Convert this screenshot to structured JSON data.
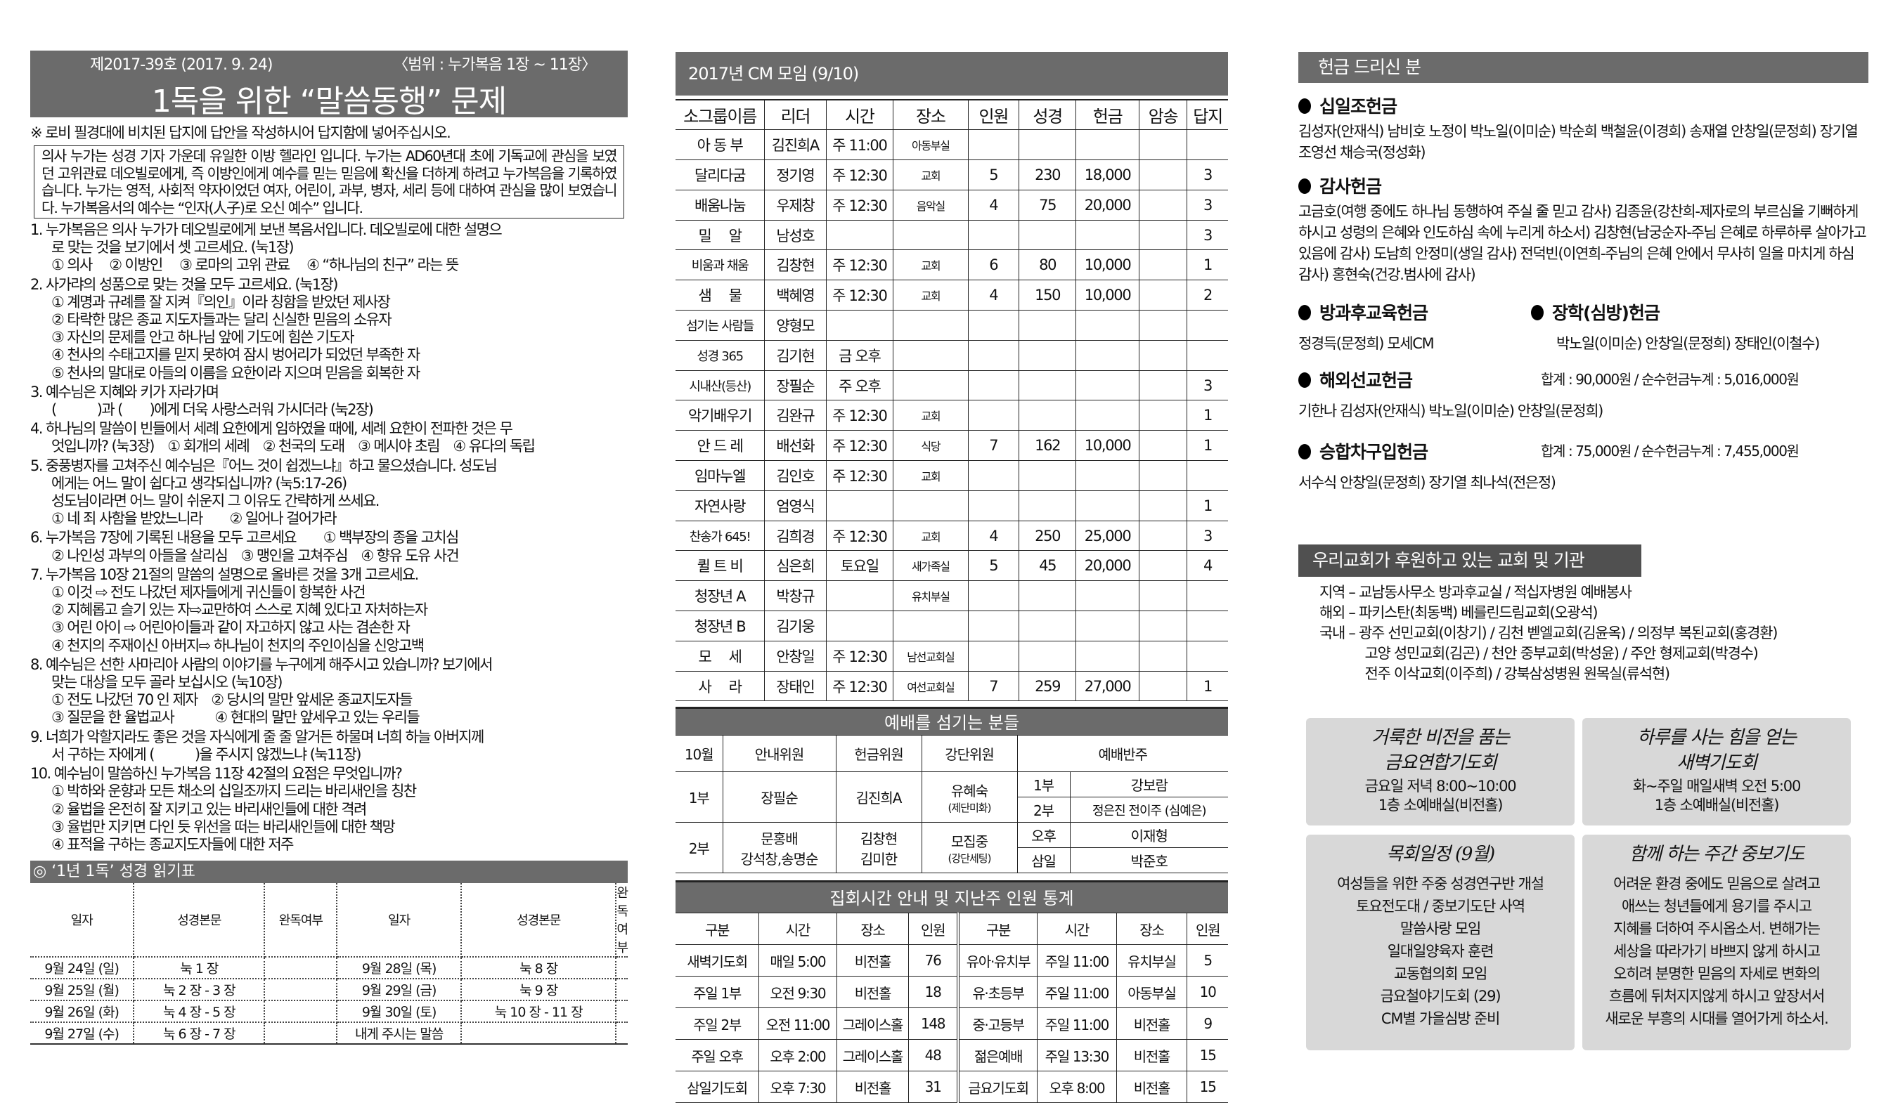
{
  "left": {
    "issue": "제2017-39호 (2017. 9. 24)",
    "range": "〈범위 : 누가복음 1장 ~ 11장〉",
    "title": "1독을 위한 “말씀동행” 문제",
    "instruction": "※ 로비 필경대에 비치된 답지에 답안을 작성하시어 답지함에 넣어주십시오.",
    "intro": "의사 누가는 성경 기자 가운데 유일한 이방 헬라인 입니다. 누가는 AD60년대 초에 기독교에 관심을 보였던 고위관료 데오빌로에게, 즉 이방인에게 예수를 믿는 믿음에 확신을 더하게 하려고 누가복음을 기록하였습니다. 누가는 영적, 사회적 약자이었던 여자, 어린이, 과부, 병자, 세리 등에 대하여 관심을 많이 보였습니다. 누가복음서의 예수는 “인자(人子)로 오신 예수” 입니다.",
    "questions": [
      {
        "lines": [
          "1. 누가복음은 의사 누가가 데오빌로에게 보낸 복음서입니다. 데오빌로에 대한 설명으",
          "로 맞는 것을 보기에서 셋 고르세요. (눅1장)",
          "① 의사　 ② 이방인　 ③ 로마의 고위 관료　 ④ “하나님의 친구” 라는 뜻"
        ]
      },
      {
        "lines": [
          "2. 사가랴의 성품으로 맞는 것을 모두 고르세요. (눅1장)",
          "① 계명과 규례를 잘 지켜『의인』이라 칭함을 받았던 제사장",
          "② 타락한 많은 종교 지도자들과는 달리 신실한 믿음의 소유자",
          "③ 자신의 문제를 안고 하나님 앞에 기도에 힘쓴 기도자",
          "④ 천사의 수태고지를 믿지 못하여 잠시 벙어리가 되었던 부족한 자",
          "⑤ 천사의 말대로 아들의 이름을 요한이라 지으며 믿음을 회복한 자"
        ]
      },
      {
        "lines": [
          "3. 예수님은 지혜와 키가 자라가며",
          "(　　　)과 (　　)에게 더욱 사랑스러워 가시더라 (눅2장)"
        ]
      },
      {
        "lines": [
          "4. 하나님의 말씀이 빈들에서 세례 요한에게 임하였을 때에, 세례 요한이 전파한 것은 무",
          "엇입니까? (눅3장)　① 회개의 세례　② 천국의 도래　③ 메시야 초림　④ 유다의 독립"
        ]
      },
      {
        "lines": [
          "5. 중풍병자를 고쳐주신 예수님은『어느 것이 쉽겠느냐』하고 물으셨습니다. 성도님",
          "에게는 어느 말이 쉽다고 생각되십니까? (눅5:17-26)",
          "성도님이라면 어느 말이 쉬운지 그 이유도 간략하게 쓰세요.",
          "① 네 죄 사함을 받았느니라　　② 일어나 걸어가라"
        ]
      },
      {
        "lines": [
          "6. 누가복음 7장에 기록된 내용을 모두 고르세요　　① 백부장의 종을 고치심",
          "② 나인성 과부의 아들을 살리심　③ 맹인을 고쳐주심　④ 향유 도유 사건"
        ]
      },
      {
        "lines": [
          "7. 누가복음 10장 21절의 말씀의 설명으로 올바른 것을 3개 고르세요.",
          "① 이것 ⇨ 전도 나갔던 제자들에게 귀신들이 항복한 사건",
          "② 지혜롭고 슬기 있는 자⇨교만하여 스스로 지혜 있다고 자처하는자",
          "③ 어린 아이 ⇨ 어린아이들과 같이 자고하지 않고 사는 겸손한 자",
          "④ 천지의 주재이신 아버지⇨ 하나님이 천지의 주인이심을 신앙고백"
        ]
      },
      {
        "lines": [
          "8. 예수님은 선한 사마리아 사람의 이야기를 누구에게 해주시고 있습니까? 보기에서",
          "맞는 대상을 모두 골라 보십시오 (눅10장)",
          " ① 전도 나갔던 70 인 제자　② 당시의 말만 앞세운 종교지도자들",
          " ③ 질문을 한 율법교사　　　④ 현대의 말만 앞세우고 있는 우리들"
        ]
      },
      {
        "lines": [
          "9. 너희가 악할지라도 좋은 것을 자식에게 줄 줄 알거든 하물며 너희 하늘 아버지께",
          "서 구하는 자에게 (　　　)을 주시지 않겠느냐 (눅11장)"
        ]
      },
      {
        "lines": [
          "10. 예수님이 말씀하신 누가복음 11장 42절의 요점은 무엇입니까?",
          "① 박하와 운향과 모든 채소의 십일조까지 드리는 바리새인을 칭찬",
          "② 율법을 온전히 잘 지키고 있는 바리새인들에 대한 격려",
          "③ 율법만 지키면 다인 듯 위선을 떠는 바리새인들에 대한 책망",
          "④ 표적을 구하는 종교지도자들에 대한 저주"
        ]
      }
    ],
    "reading": {
      "title": "◎ ‘1년 1독’ 성경 읽기표",
      "headers": [
        "일자",
        "성경본문",
        "완독여부",
        "일자",
        "성경본문",
        "완독여부"
      ],
      "rows": [
        [
          "9월 24일 (일)",
          "눅 1 장",
          "",
          "9월 28일 (목)",
          "눅 8 장",
          ""
        ],
        [
          "9월 25일 (월)",
          "눅 2 장 - 3 장",
          "",
          "9월 29일 (금)",
          "눅 9 장",
          ""
        ],
        [
          "9월 26일 (화)",
          "눅 4 장 - 5 장",
          "",
          "9월 30일 (토)",
          "눅 10 장 - 11 장",
          ""
        ],
        [
          "9월 27일 (수)",
          "눅 6 장 - 7 장",
          "",
          "내게 주시는 말씀",
          "",
          ""
        ]
      ]
    }
  },
  "cm": {
    "title": "2017년 CM 모임 (9/10)",
    "headers": [
      "소그룹이름",
      "리더",
      "시간",
      "장소",
      "인원",
      "성경",
      "헌금",
      "암송",
      "답지"
    ],
    "rows": [
      [
        "아 동 부",
        "김진희A",
        "주 11:00",
        "아동부실",
        "",
        "",
        "",
        "",
        ""
      ],
      [
        "달리다굼",
        "정기영",
        "주 12:30",
        "교회",
        "5",
        "230",
        "18,000",
        "",
        "3"
      ],
      [
        "배움나눔",
        "우제창",
        "주 12:30",
        "음악실",
        "4",
        "75",
        "20,000",
        "",
        "3"
      ],
      [
        "밀　 알",
        "남성호",
        "",
        "",
        "",
        "",
        "",
        "",
        "3"
      ],
      [
        "비움과 채움",
        "김창현",
        "주 12:30",
        "교회",
        "6",
        "80",
        "10,000",
        "",
        "1"
      ],
      [
        "샘　 물",
        "백혜영",
        "주 12:30",
        "교회",
        "4",
        "150",
        "10,000",
        "",
        "2"
      ],
      [
        "섬기는 사람들",
        "양형모",
        "",
        "",
        "",
        "",
        "",
        "",
        ""
      ],
      [
        "성경 365",
        "김기현",
        "금 오후",
        "",
        "",
        "",
        "",
        "",
        ""
      ],
      [
        "시내산(등산)",
        "장필순",
        "주 오후",
        "",
        "",
        "",
        "",
        "",
        "3"
      ],
      [
        "악기배우기",
        "김완규",
        "주 12:30",
        "교회",
        "",
        "",
        "",
        "",
        "1"
      ],
      [
        "안 드 레",
        "배선화",
        "주 12:30",
        "식당",
        "7",
        "162",
        "10,000",
        "",
        "1"
      ],
      [
        "임마누엘",
        "김인호",
        "주 12:30",
        "교회",
        "",
        "",
        "",
        "",
        ""
      ],
      [
        "자연사랑",
        "엄영식",
        "",
        "",
        "",
        "",
        "",
        "",
        "1"
      ],
      [
        "찬송가 645!",
        "김희경",
        "주 12:30",
        "교회",
        "4",
        "250",
        "25,000",
        "",
        "3"
      ],
      [
        "퀼 트 비",
        "심은희",
        "토요일",
        "새가족실",
        "5",
        "45",
        "20,000",
        "",
        "4"
      ],
      [
        "청장년 A",
        "박창규",
        "",
        "유치부실",
        "",
        "",
        "",
        "",
        ""
      ],
      [
        "청장년 B",
        "김기웅",
        "",
        "",
        "",
        "",
        "",
        "",
        ""
      ],
      [
        "모　 세",
        "안창일",
        "주 12:30",
        "남선교회실",
        "",
        "",
        "",
        "",
        ""
      ],
      [
        "사　 라",
        "장태인",
        "주 12:30",
        "여선교회실",
        "7",
        "259",
        "27,000",
        "",
        "1"
      ]
    ]
  },
  "worship": {
    "title": "예배를 섬기는 분들",
    "headers": [
      "10월",
      "안내위원",
      "헌금위원",
      "강단위원",
      "예배반주"
    ],
    "part1": "1부",
    "part2": "2부",
    "usher1": "장필순",
    "usher2a": "문홍배",
    "usher2b": "강석창,송명순",
    "offering1": "김진희A",
    "offering2a": "김창현",
    "offering2b": "김미한",
    "altar1": "유혜숙",
    "altar1_note": "(제단미화)",
    "altar2": "모집중",
    "altar2_note": "(강단세팅)",
    "accomp": [
      [
        "1부",
        "강보람"
      ],
      [
        "2부",
        "정은진 전이주 (심예은)"
      ],
      [
        "오후",
        "이재형"
      ],
      [
        "삼일",
        "박준호"
      ]
    ]
  },
  "meeting": {
    "title": "집회시간 안내 및 지난주 인원 통계",
    "headers": [
      "구분",
      "시간",
      "장소",
      "인원",
      "구분",
      "시간",
      "장소",
      "인원"
    ],
    "rows": [
      [
        "새벽기도회",
        "매일 5:00",
        "비전홀",
        "76",
        "유아·유치부",
        "주일 11:00",
        "유치부실",
        "5"
      ],
      [
        "주일 1부",
        "오전 9:30",
        "비전홀",
        "18",
        "유·초등부",
        "주일 11:00",
        "아동부실",
        "10"
      ],
      [
        "주일 2부",
        "오전 11:00",
        "그레이스홀",
        "148",
        "중·고등부",
        "주일 11:00",
        "비전홀",
        "9"
      ],
      [
        "주일 오후",
        "오후 2:00",
        "그레이스홀",
        "48",
        "젊은예배",
        "주일 13:30",
        "비전홀",
        "15"
      ],
      [
        "삼일기도회",
        "오후 7:30",
        "비전홀",
        "31",
        "금요기도회",
        "오후 8:00",
        "비전홀",
        "15"
      ]
    ]
  },
  "offering": {
    "title": "헌금 드리신 분",
    "tithe": {
      "title": "십일조헌금",
      "names": "김성자(안재식) 남비호 노정이 박노일(이미순) 박순희 백철윤(이경희) 송재열 안창일(문정희) 장기열 조영선 채승국(정성화)"
    },
    "thanks": {
      "title": "감사헌금",
      "names": "고금호(여행 중에도 하나님 동행하여 주실 줄 믿고 감사) 김종윤(강찬희-제자로의 부르심을 기뻐하게 하시고 성령의 은혜와 인도하심 속에 누리게 하소서) 김창현(남궁순자-주님 은혜로 하루하루 살아가고 있음에 감사) 도남희 안정미(생일 감사) 전덕빈(이연희-주님의 은혜 안에서 무사히 일을 마치게 하심 감사) 홍현숙(건강.범사에 감사)"
    },
    "afterschool": {
      "title": "방과후교육헌금",
      "names": "정경득(문정희) 모세CM"
    },
    "scholarship": {
      "title": "장학(심방)헌금",
      "names": "박노일(이미순) 안창일(문정희) 장태인(이철수)"
    },
    "mission": {
      "title": "해외선교헌금",
      "total": "합계 : 90,000원 / 순수헌금누계 : 5,016,000원",
      "names": "기한나 김성자(안재식) 박노일(이미순) 안창일(문정희)"
    },
    "van": {
      "title": "승합차구입헌금",
      "total": "합계 : 75,000원 / 순수헌금누계 : 7,455,000원",
      "names": "서수식 안창일(문정희) 장기열 최나석(전은정)"
    }
  },
  "support": {
    "title": "우리교회가 후원하고 있는 교회 및 기관",
    "lines": [
      "지역 – 교남동사무소 방과후교실 / 적십자병원 예배봉사",
      "해외 – 파키스탄(최동백) 베를린드림교회(오광석)",
      "국내 – 광주 선민교회(이창기) / 김천 벧엘교회(김윤옥) / 의정부 복된교회(홍경환)",
      "　　　 고양 성민교회(김곤) / 천안 중부교회(박성윤) / 주안 형제교회(박경수)",
      "　　　 전주 이삭교회(이주희) / 강북삼성병원 원목실(류석현)"
    ]
  },
  "boxes": [
    {
      "title": [
        "거룩한 비전을 품는",
        "금요연합기도회"
      ],
      "lines": [
        "금요일 저녁 8:00~10:00",
        "1층 소예배실(비전홀)"
      ]
    },
    {
      "title": [
        "하루를 사는 힘을 얻는",
        "새벽기도회"
      ],
      "lines": [
        "화~주일 매일새벽 오전 5:00",
        "1층 소예배실(비전홀)"
      ]
    },
    {
      "title": [
        "목회일정 (9월)"
      ],
      "lines": [
        "여성들을 위한 주중 성경연구반 개설",
        "토요전도대 / 중보기도단 사역",
        "말씀사랑 모임",
        "일대일양육자 훈련",
        "교동협의회 모임",
        "금요철야기도회 (29)",
        "CM별 가을심방 준비"
      ]
    },
    {
      "title": [
        "함께 하는 주간 중보기도"
      ],
      "lines": [
        "어려운 환경 중에도 믿음으로 살려고",
        "애쓰는 청년들에게 용기를 주시고",
        "지혜를 더하여 주시옵소서. 변해가는",
        "세상을 따라가기 바쁘지 않게 하시고",
        "오히려 분명한 믿음의 자세로 변화의",
        "흐름에 뒤처지지않게 하시고 앞장서서",
        "새로운 부흥의 시대를 열어가게 하소서."
      ]
    }
  ],
  "colors": {
    "header_bar": "#6b6b6b",
    "support_bar": "#505050",
    "box_bg": "#d8d8d8"
  }
}
